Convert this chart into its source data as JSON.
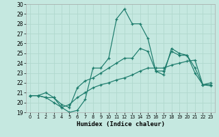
{
  "xlabel": "Humidex (Indice chaleur)",
  "xlim": [
    -0.5,
    23.5
  ],
  "ylim": [
    19,
    30
  ],
  "xticks": [
    0,
    1,
    2,
    3,
    4,
    5,
    6,
    7,
    8,
    9,
    10,
    11,
    12,
    13,
    14,
    15,
    16,
    17,
    18,
    19,
    20,
    21,
    22,
    23
  ],
  "yticks": [
    19,
    20,
    21,
    22,
    23,
    24,
    25,
    26,
    27,
    28,
    29,
    30
  ],
  "bg_color": "#c5e8e0",
  "grid_color": "#b0d8ce",
  "line_color": "#1a7a6a",
  "line1_x": [
    0,
    1,
    2,
    3,
    4,
    5,
    6,
    7,
    8,
    9,
    10,
    11,
    12,
    13,
    14,
    15,
    16,
    17,
    18,
    19,
    20,
    21,
    22,
    23
  ],
  "line1_y": [
    20.7,
    20.7,
    20.5,
    20.5,
    19.5,
    19.0,
    19.2,
    20.3,
    23.5,
    23.5,
    24.5,
    28.5,
    29.5,
    28.0,
    28.0,
    26.5,
    23.2,
    22.8,
    25.5,
    25.0,
    24.8,
    23.5,
    21.8,
    21.7
  ],
  "line2_x": [
    0,
    1,
    2,
    3,
    4,
    5,
    6,
    7,
    8,
    9,
    10,
    11,
    12,
    13,
    14,
    15,
    16,
    17,
    18,
    19,
    20,
    21,
    22,
    23
  ],
  "line2_y": [
    20.7,
    20.7,
    21.0,
    20.5,
    19.8,
    19.5,
    21.5,
    22.2,
    22.5,
    23.0,
    23.5,
    24.0,
    24.5,
    24.5,
    25.5,
    25.2,
    23.2,
    23.2,
    25.2,
    24.8,
    24.8,
    23.0,
    21.8,
    22.0
  ],
  "line3_x": [
    0,
    1,
    2,
    3,
    4,
    5,
    6,
    7,
    8,
    9,
    10,
    11,
    12,
    13,
    14,
    15,
    16,
    17,
    18,
    19,
    20,
    21,
    22,
    23
  ],
  "line3_y": [
    20.7,
    20.7,
    20.5,
    20.0,
    19.5,
    19.8,
    20.5,
    21.0,
    21.5,
    21.8,
    22.0,
    22.3,
    22.5,
    22.8,
    23.2,
    23.5,
    23.5,
    23.5,
    23.8,
    24.0,
    24.2,
    24.3,
    21.8,
    21.8
  ]
}
